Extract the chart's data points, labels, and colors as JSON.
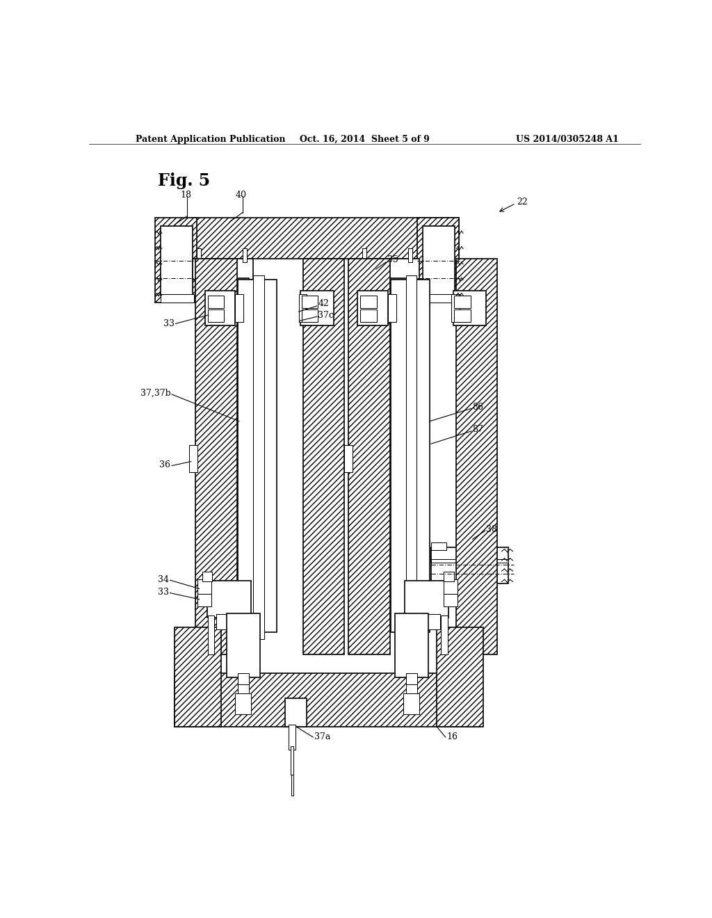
{
  "header_left": "Patent Application Publication",
  "header_center": "Oct. 16, 2014  Sheet 5 of 9",
  "header_right": "US 2014/0305248 A1",
  "fig_label": "Fig. 5",
  "bg_color": "#ffffff"
}
